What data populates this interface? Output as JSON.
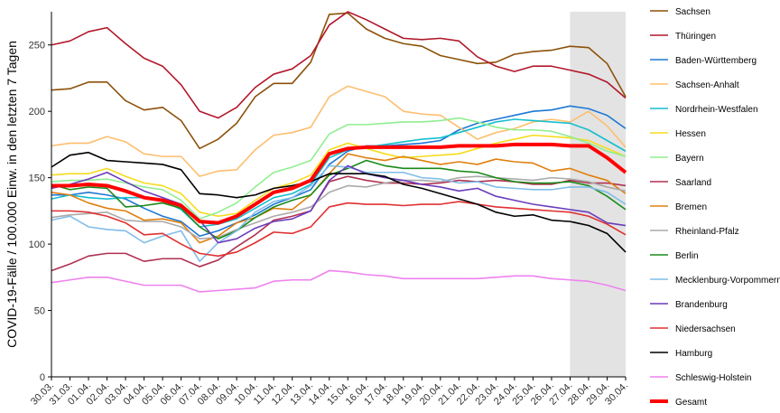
{
  "chart_data": {
    "type": "line",
    "ylabel": "COVID-19-Fälle / 100.000 Einw. in den letzten 7 Tagen",
    "xlabel": "",
    "ylim": [
      0,
      275
    ],
    "yticks": [
      0,
      50,
      100,
      150,
      200,
      250
    ],
    "grid": false,
    "legend_position": "right",
    "shaded_region": {
      "from": "27.04.",
      "to": "30.04.",
      "color": "#e3e3e3"
    },
    "x": [
      "30.03.",
      "31.03.",
      "01.04.",
      "02.04.",
      "03.04.",
      "04.04.",
      "05.04.",
      "06.04.",
      "07.04.",
      "08.04.",
      "09.04.",
      "10.04.",
      "11.04.",
      "12.04.",
      "13.04.",
      "14.04.",
      "15.04.",
      "16.04.",
      "17.04.",
      "18.04.",
      "19.04.",
      "20.04.",
      "21.04.",
      "22.04.",
      "23.04.",
      "24.04.",
      "25.04.",
      "26.04.",
      "27.04.",
      "28.04.",
      "29.04.",
      "30.04."
    ],
    "series": [
      {
        "name": "Sachsen",
        "color": "#8c510a",
        "values": [
          216,
          217,
          222,
          222,
          208,
          201,
          203,
          193,
          172,
          179,
          191,
          211,
          221,
          221,
          237,
          273,
          274,
          262,
          255,
          251,
          249,
          242,
          239,
          236,
          237,
          243,
          245,
          246,
          249,
          248,
          236,
          211
        ]
      },
      {
        "name": "Thüringen",
        "color": "#b2182b",
        "values": [
          250,
          253,
          260,
          263,
          251,
          240,
          234,
          220,
          200,
          195,
          203,
          218,
          228,
          232,
          242,
          265,
          275,
          269,
          262,
          255,
          254,
          255,
          253,
          241,
          234,
          230,
          234,
          234,
          231,
          228,
          222,
          210
        ]
      },
      {
        "name": "Baden-Württemberg",
        "color": "#1f78d4",
        "values": [
          137,
          137,
          139,
          137,
          134,
          127,
          121,
          117,
          106,
          110,
          116,
          122,
          130,
          135,
          141,
          160,
          170,
          174,
          174,
          175,
          176,
          178,
          186,
          191,
          194,
          197,
          200,
          201,
          204,
          202,
          197,
          187
        ]
      },
      {
        "name": "Sachsen-Anhalt",
        "color": "#fdbf6f",
        "values": [
          174,
          176,
          176,
          181,
          177,
          168,
          166,
          166,
          151,
          155,
          156,
          171,
          182,
          184,
          188,
          211,
          219,
          215,
          211,
          200,
          198,
          197,
          188,
          179,
          184,
          187,
          192,
          194,
          192,
          200,
          189,
          173
        ]
      },
      {
        "name": "Nordrhein-Westfalen",
        "color": "#17becf",
        "values": [
          134,
          137,
          135,
          134,
          135,
          135,
          133,
          126,
          113,
          115,
          119,
          127,
          135,
          138,
          145,
          165,
          171,
          173,
          175,
          177,
          179,
          180,
          184,
          188,
          192,
          194,
          193,
          192,
          191,
          186,
          178,
          170
        ]
      },
      {
        "name": "Hessen",
        "color": "#f5dc1e",
        "values": [
          152,
          153,
          153,
          157,
          151,
          146,
          144,
          138,
          124,
          121,
          123,
          133,
          142,
          146,
          152,
          171,
          176,
          172,
          168,
          165,
          166,
          167,
          168,
          172,
          176,
          179,
          182,
          181,
          180,
          178,
          172,
          166
        ]
      },
      {
        "name": "Bayern",
        "color": "#90ee90",
        "values": [
          147,
          148,
          148,
          149,
          146,
          143,
          141,
          133,
          119,
          124,
          131,
          143,
          154,
          158,
          163,
          183,
          190,
          190,
          191,
          192,
          192,
          193,
          195,
          192,
          188,
          186,
          186,
          185,
          181,
          176,
          170,
          166
        ]
      },
      {
        "name": "Saarland",
        "color": "#b03050",
        "values": [
          80,
          85,
          91,
          93,
          93,
          87,
          89,
          89,
          83,
          88,
          98,
          107,
          118,
          121,
          125,
          147,
          151,
          148,
          146,
          146,
          145,
          146,
          148,
          147,
          148,
          147,
          145,
          145,
          148,
          146,
          146,
          144
        ]
      },
      {
        "name": "Bremen",
        "color": "#e08010",
        "values": [
          139,
          137,
          131,
          127,
          125,
          118,
          119,
          116,
          101,
          106,
          116,
          120,
          127,
          126,
          137,
          153,
          168,
          165,
          163,
          166,
          163,
          160,
          162,
          160,
          164,
          162,
          161,
          155,
          157,
          152,
          148,
          138
        ]
      },
      {
        "name": "Rheinland-Pfalz",
        "color": "#aaaaaa",
        "values": [
          120,
          122,
          123,
          124,
          118,
          117,
          117,
          113,
          104,
          105,
          111,
          116,
          121,
          124,
          128,
          139,
          144,
          143,
          146,
          148,
          148,
          147,
          150,
          151,
          150,
          149,
          148,
          150,
          149,
          147,
          143,
          140
        ]
      },
      {
        "name": "Berlin",
        "color": "#1a8a1a",
        "values": [
          145,
          141,
          143,
          142,
          128,
          129,
          131,
          127,
          113,
          104,
          110,
          120,
          128,
          133,
          137,
          152,
          157,
          163,
          159,
          157,
          157,
          157,
          155,
          154,
          150,
          147,
          146,
          146,
          147,
          144,
          136,
          126
        ]
      },
      {
        "name": "Mecklenburg-Vorpommern",
        "color": "#80bde8",
        "values": [
          118,
          121,
          113,
          111,
          110,
          101,
          106,
          110,
          87,
          101,
          110,
          124,
          132,
          135,
          144,
          159,
          158,
          154,
          154,
          154,
          150,
          149,
          146,
          147,
          143,
          142,
          141,
          141,
          143,
          143,
          139,
          130
        ]
      },
      {
        "name": "Brandenburg",
        "color": "#6a3cbc",
        "values": [
          142,
          145,
          149,
          154,
          147,
          140,
          135,
          130,
          118,
          101,
          104,
          112,
          117,
          119,
          125,
          148,
          159,
          153,
          150,
          148,
          145,
          143,
          140,
          142,
          136,
          133,
          130,
          128,
          126,
          124,
          116,
          114
        ]
      },
      {
        "name": "Niedersachsen",
        "color": "#e03030",
        "values": [
          125,
          125,
          124,
          121,
          116,
          107,
          108,
          100,
          93,
          91,
          94,
          101,
          109,
          108,
          113,
          128,
          131,
          130,
          130,
          129,
          130,
          130,
          132,
          130,
          128,
          127,
          126,
          125,
          124,
          121,
          115,
          107
        ]
      },
      {
        "name": "Hamburg",
        "color": "#000000",
        "values": [
          158,
          167,
          169,
          163,
          162,
          161,
          160,
          156,
          138,
          137,
          135,
          137,
          142,
          144,
          147,
          153,
          153,
          153,
          151,
          145,
          142,
          138,
          134,
          130,
          124,
          121,
          122,
          118,
          117,
          114,
          108,
          94
        ]
      },
      {
        "name": "Schleswig-Holstein",
        "color": "#ee82ee",
        "values": [
          71,
          73,
          75,
          75,
          72,
          69,
          69,
          69,
          64,
          65,
          66,
          67,
          72,
          73,
          73,
          80,
          79,
          77,
          76,
          74,
          74,
          74,
          74,
          74,
          75,
          76,
          76,
          74,
          73,
          72,
          69,
          65
        ]
      },
      {
        "name": "Gesamt",
        "color": "#ff0000",
        "bold": true,
        "values": [
          144,
          144,
          145,
          144,
          140,
          135,
          133,
          129,
          117,
          116,
          121,
          130,
          139,
          142,
          148,
          168,
          172,
          173,
          173,
          173,
          173,
          173,
          174,
          174,
          174,
          175,
          175,
          175,
          174,
          174,
          165,
          154
        ]
      }
    ]
  }
}
